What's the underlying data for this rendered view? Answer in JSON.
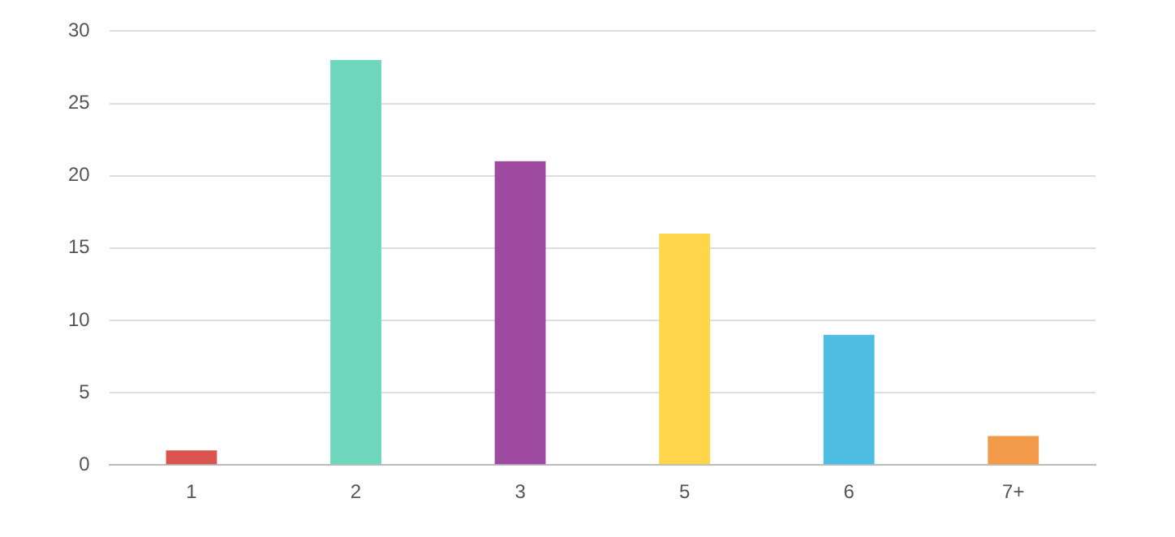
{
  "chart_data": {
    "type": "bar",
    "categories": [
      "1",
      "2",
      "3",
      "5",
      "6",
      "7+"
    ],
    "values": [
      1,
      28,
      21,
      16,
      9,
      2
    ],
    "colors": [
      "#d9534f",
      "#6dd6bd",
      "#9e4aa0",
      "#ffd54a",
      "#4dbde3",
      "#f39a4a"
    ],
    "ylim": [
      0,
      30
    ],
    "yticks": [
      0,
      5,
      10,
      15,
      20,
      25,
      30
    ],
    "grid": "y",
    "legend": false
  }
}
